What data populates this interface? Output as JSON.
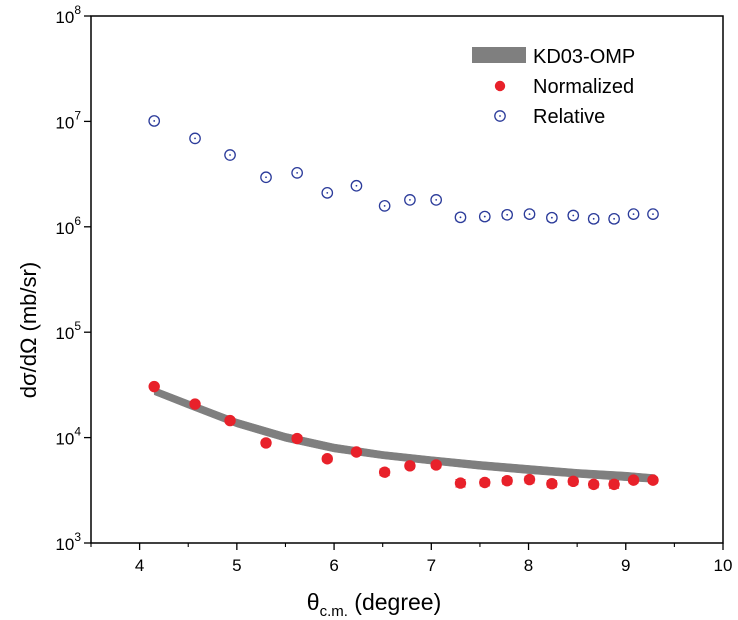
{
  "chart_data": {
    "type": "scatter",
    "x_axis": {
      "label_main": "θ",
      "label_sub": "c.m.",
      "label_rest": " (degree)",
      "range": [
        3.5,
        10
      ],
      "ticks": [
        4,
        5,
        6,
        7,
        8,
        9,
        10
      ]
    },
    "y_axis": {
      "label": "dσ/dΩ  (mb/sr)",
      "scale": "log",
      "range": [
        1000,
        100000000
      ],
      "ticks": [
        {
          "value": 1000,
          "base": "10",
          "exp": "3"
        },
        {
          "value": 10000,
          "base": "10",
          "exp": "4"
        },
        {
          "value": 100000,
          "base": "10",
          "exp": "5"
        },
        {
          "value": 1000000,
          "base": "10",
          "exp": "6"
        },
        {
          "value": 10000000,
          "base": "10",
          "exp": "7"
        },
        {
          "value": 100000000,
          "base": "10",
          "exp": "8"
        }
      ]
    },
    "legend": {
      "position": "top-right",
      "entries": [
        "KD03-OMP",
        "Normalized",
        "Relative"
      ]
    },
    "series": [
      {
        "name": "KD03-OMP",
        "kind": "band",
        "color": "#7f7f7f",
        "x": [
          4.15,
          4.5,
          5.0,
          5.5,
          6.0,
          6.5,
          7.0,
          7.5,
          8.0,
          8.5,
          9.0,
          9.3
        ],
        "lower": [
          25500,
          19000,
          12600,
          9200,
          7300,
          6300,
          5600,
          5000,
          4550,
          4200,
          3900,
          3750
        ],
        "upper": [
          30000,
          22500,
          15000,
          11000,
          8700,
          7400,
          6600,
          5950,
          5450,
          5000,
          4700,
          4450
        ]
      },
      {
        "name": "Normalized",
        "kind": "filled",
        "color": "#e8212a",
        "x": [
          4.15,
          4.57,
          4.93,
          5.3,
          5.62,
          5.93,
          6.23,
          6.52,
          6.78,
          7.05,
          7.3,
          7.55,
          7.78,
          8.01,
          8.24,
          8.46,
          8.67,
          8.88,
          9.08,
          9.28
        ],
        "y": [
          30500,
          20800,
          14500,
          8900,
          9800,
          6300,
          7300,
          4700,
          5400,
          5500,
          3700,
          3750,
          3900,
          4000,
          3650,
          3850,
          3600,
          3600,
          3950,
          3950
        ],
        "err": [
          0.04,
          0.04,
          0.05,
          0.06,
          0.06,
          0.06,
          0.06,
          0.07,
          0.06,
          0.06,
          0.08,
          0.07,
          0.07,
          0.07,
          0.07,
          0.07,
          0.07,
          0.08,
          0.06,
          0.06
        ]
      },
      {
        "name": "Relative",
        "kind": "open",
        "color": "#2b3b9a",
        "x": [
          4.15,
          4.57,
          4.93,
          5.3,
          5.62,
          5.93,
          6.23,
          6.52,
          6.78,
          7.05,
          7.3,
          7.55,
          7.78,
          8.01,
          8.24,
          8.46,
          8.67,
          8.88,
          9.08,
          9.28
        ],
        "y": [
          10100000,
          6900000,
          4800000,
          2950000,
          3250000,
          2100000,
          2450000,
          1580000,
          1800000,
          1800000,
          1230000,
          1250000,
          1300000,
          1320000,
          1220000,
          1280000,
          1190000,
          1190000,
          1320000,
          1320000
        ],
        "err": [
          0.04,
          0.04,
          0.04,
          0.05,
          0.05,
          0.05,
          0.05,
          0.06,
          0.06,
          0.06,
          0.07,
          0.07,
          0.07,
          0.07,
          0.07,
          0.07,
          0.07,
          0.07,
          0.06,
          0.06
        ]
      }
    ],
    "grid": false
  }
}
